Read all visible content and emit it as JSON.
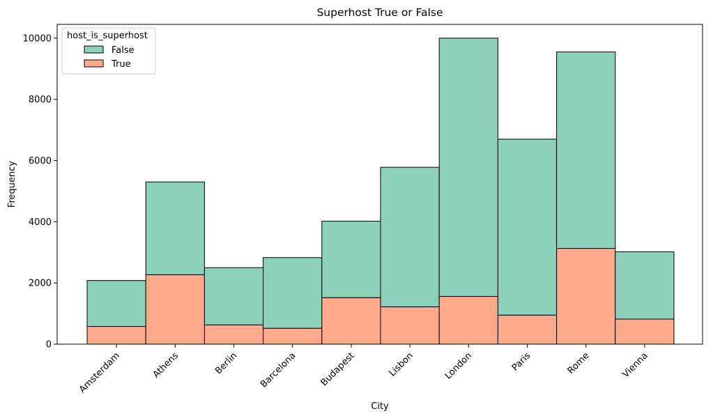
{
  "chart_data": {
    "type": "bar",
    "stacked": true,
    "title": "Superhost True or False",
    "xlabel": "City",
    "ylabel": "Frequency",
    "ylim": [
      0,
      10450
    ],
    "yticks": [
      0,
      2000,
      4000,
      6000,
      8000,
      10000
    ],
    "categories": [
      "Amsterdam",
      "Athens",
      "Berlin",
      "Barcelona",
      "Budapest",
      "Lisbon",
      "London",
      "Paris",
      "Rome",
      "Vienna"
    ],
    "series": [
      {
        "name": "True",
        "color": "#fca98c",
        "values": [
          580,
          2270,
          630,
          520,
          1520,
          1220,
          1560,
          950,
          3130,
          820
        ]
      },
      {
        "name": "False",
        "color": "#8dd1bb",
        "values": [
          1500,
          3030,
          1870,
          2310,
          2500,
          4560,
          8440,
          5750,
          6420,
          2200
        ]
      }
    ],
    "legend": {
      "title": "host_is_superhost",
      "placement": "top-left",
      "entries": [
        {
          "label": "False",
          "color": "#8dd1bb"
        },
        {
          "label": "True",
          "color": "#fca98c"
        }
      ]
    },
    "grid": false,
    "edge_color": "#000000"
  }
}
